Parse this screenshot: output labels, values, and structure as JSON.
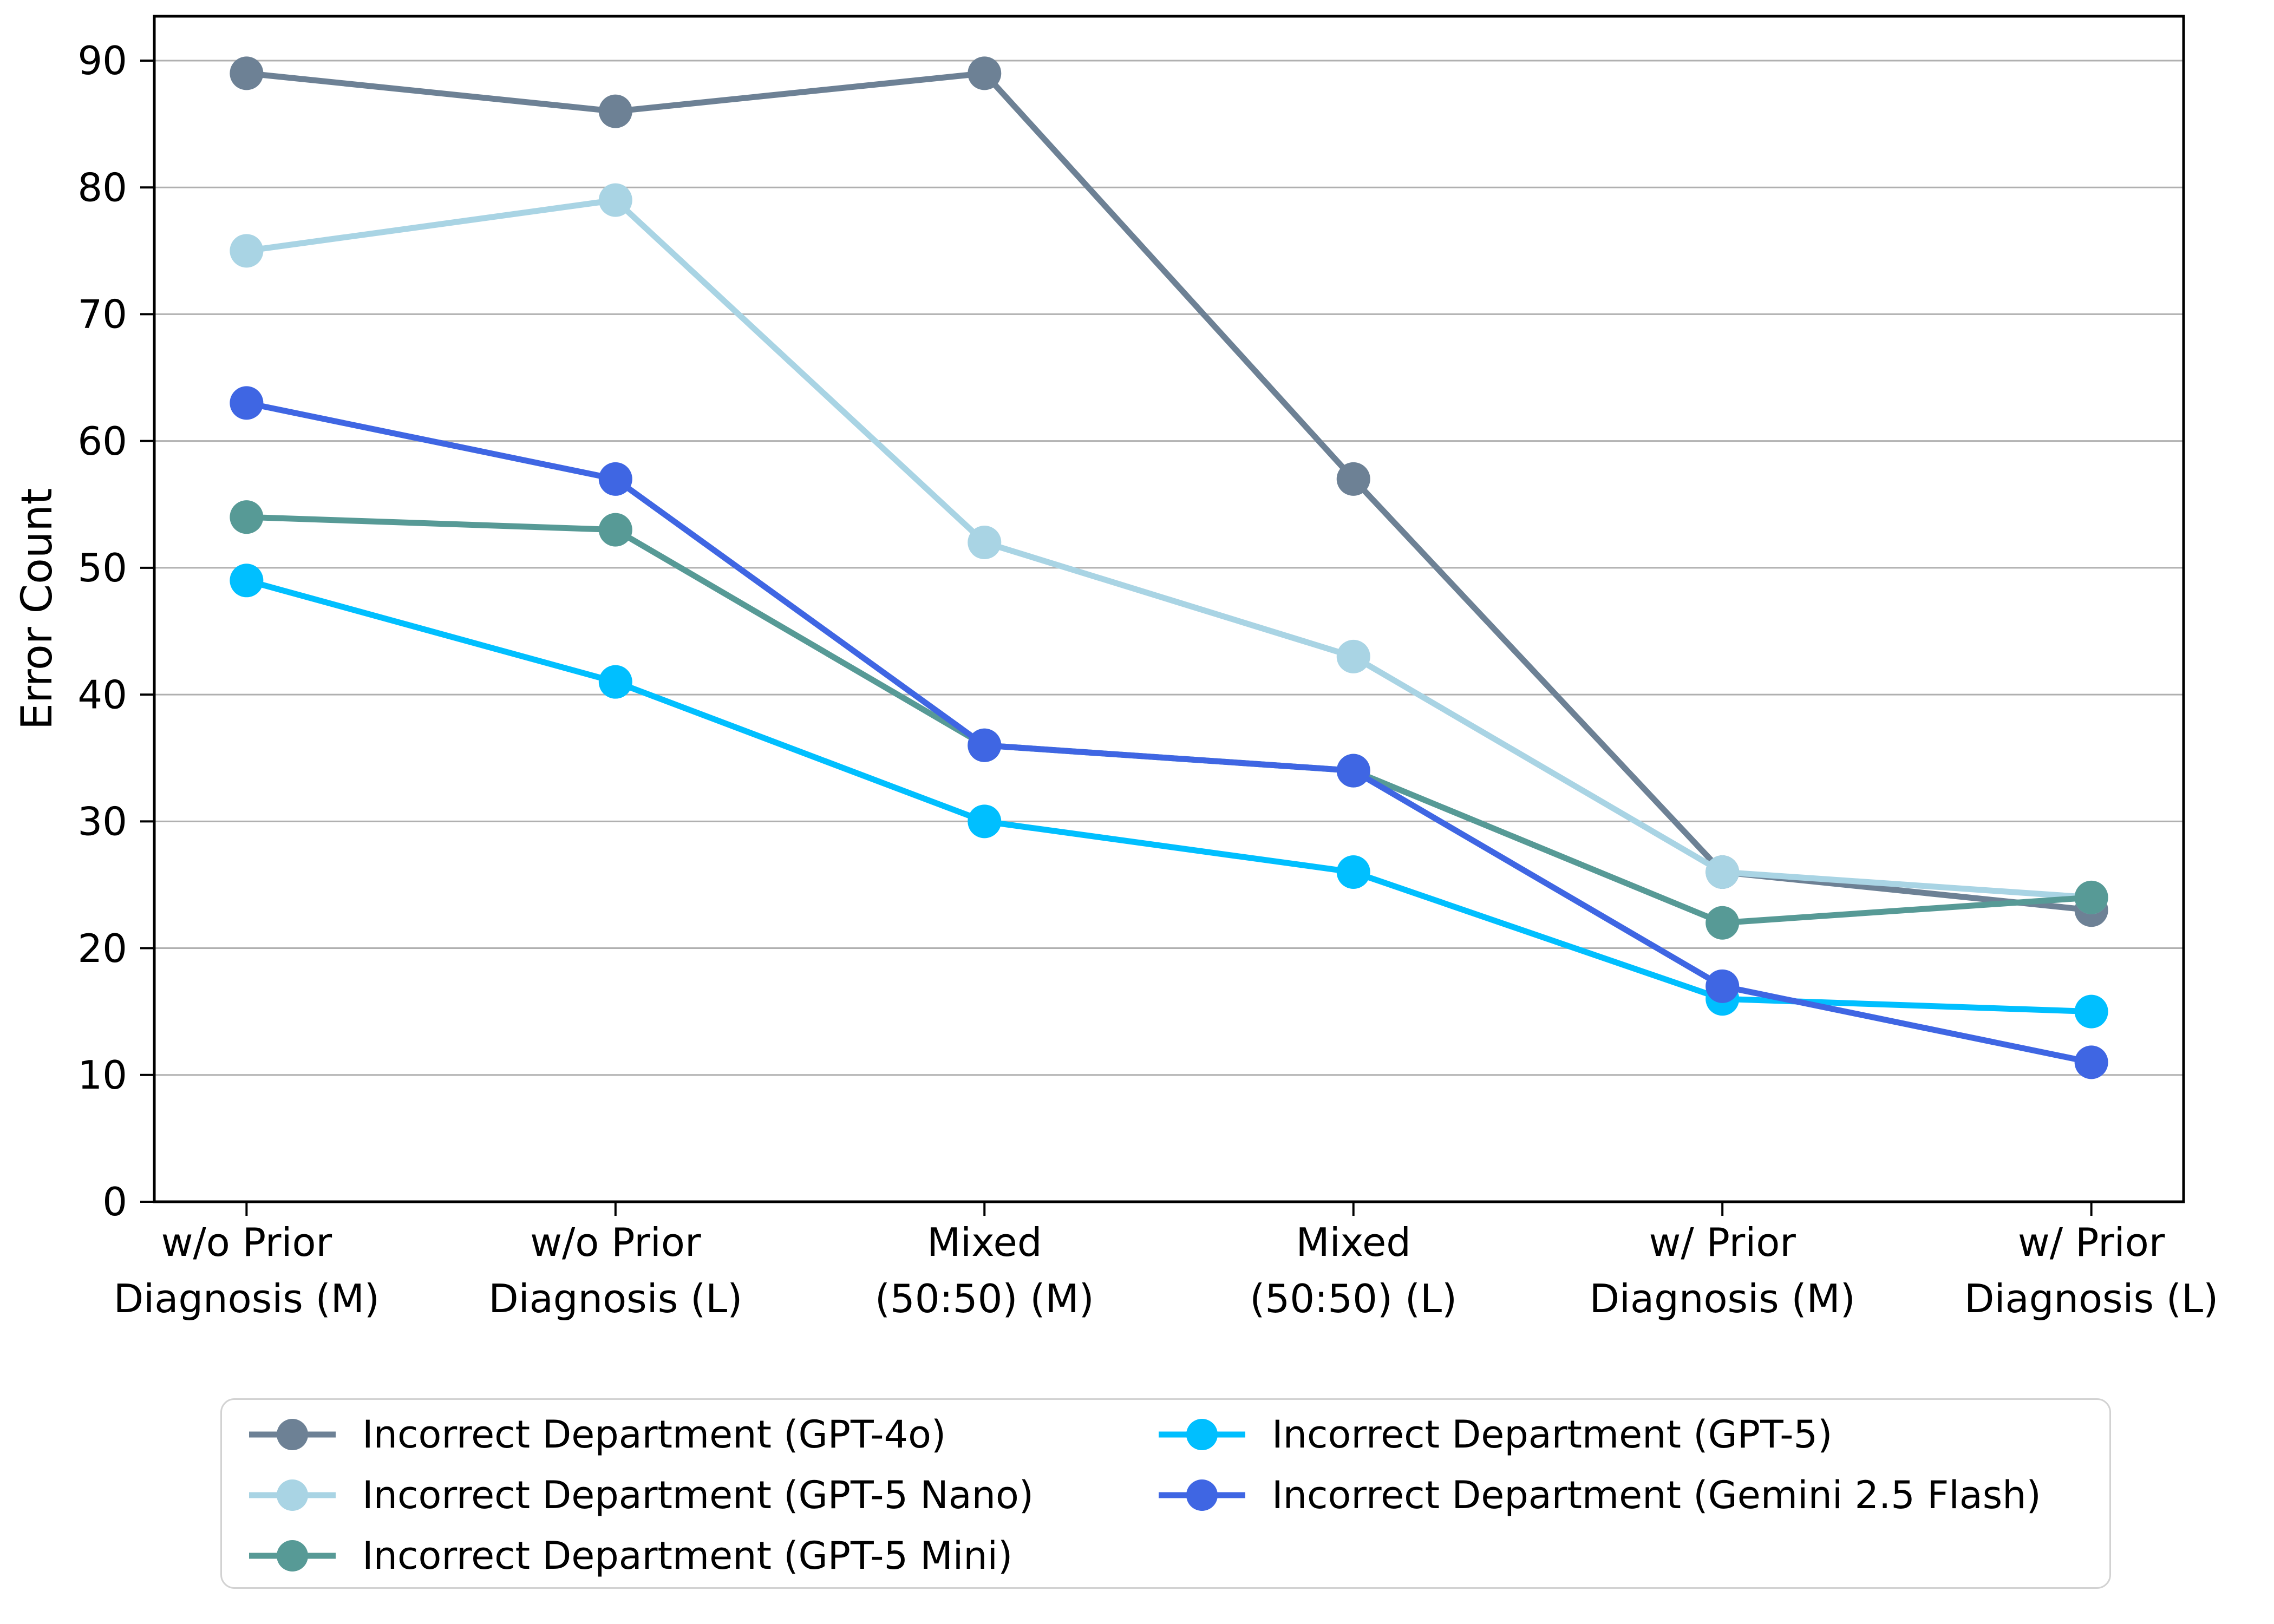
{
  "page": {
    "background": "#ffffff"
  },
  "chart_data": {
    "type": "line",
    "title": "",
    "xlabel": "",
    "ylabel": "Error Count",
    "ylim": [
      0,
      93.5
    ],
    "yticks": [
      0,
      10,
      20,
      30,
      40,
      50,
      60,
      70,
      80,
      90
    ],
    "grid": "horizontal",
    "legend_position": "bottom",
    "legend_ncols": 2,
    "categories": [
      [
        "w/o Prior",
        "Diagnosis (M)"
      ],
      [
        "w/o Prior",
        "Diagnosis (L)"
      ],
      [
        "Mixed",
        "(50:50) (M)"
      ],
      [
        "Mixed",
        "(50:50) (L)"
      ],
      [
        "w/ Prior",
        "Diagnosis (M)"
      ],
      [
        "w/ Prior",
        "Diagnosis (L)"
      ]
    ],
    "series": [
      {
        "name": "Incorrect Department (GPT-4o)",
        "color": "#6d8195",
        "values": [
          89,
          86,
          89,
          57,
          26,
          23
        ]
      },
      {
        "name": "Incorrect Department (GPT-5 Nano)",
        "color": "#a9d4e4",
        "values": [
          75,
          79,
          52,
          43,
          26,
          24
        ]
      },
      {
        "name": "Incorrect Department (GPT-5 Mini)",
        "color": "#579a96",
        "values": [
          54,
          53,
          36,
          34,
          22,
          24
        ]
      },
      {
        "name": "Incorrect Department (GPT-5)",
        "color": "#00bfff",
        "values": [
          49,
          41,
          30,
          26,
          16,
          15
        ]
      },
      {
        "name": "Incorrect Department (Gemini 2.5 Flash)",
        "color": "#3f66e3",
        "values": [
          63,
          57,
          36,
          34,
          17,
          11
        ]
      }
    ],
    "legend_columns": [
      [
        0,
        1,
        2
      ],
      [
        3,
        4
      ]
    ]
  },
  "style": {
    "grid_color": "#b0b0b0",
    "spine_color": "#000000",
    "tick_color": "#000000",
    "text_color": "#000000",
    "legend_border_color": "#d2d2d2",
    "marker_radius": 31,
    "line_width": 11
  }
}
